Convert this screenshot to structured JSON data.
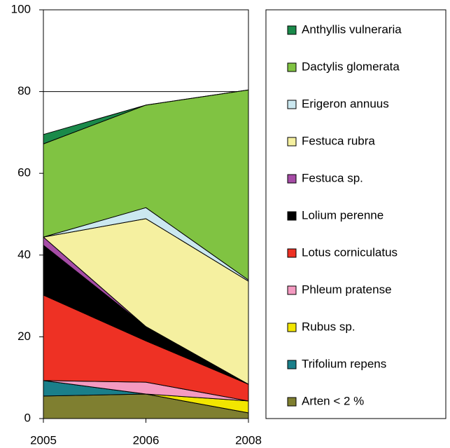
{
  "chart_data": {
    "type": "stacked_area",
    "categories": [
      "2005",
      "2006",
      "2008"
    ],
    "ylim": [
      0,
      100
    ],
    "yticks": [
      0,
      20,
      40,
      60,
      80,
      100
    ],
    "grid": true,
    "series": [
      {
        "name": "Arten < 2 %",
        "color": "#7f7f30",
        "values": [
          5.5,
          6.0,
          1.4
        ]
      },
      {
        "name": "Trifolium repens",
        "color": "#1a7f8a",
        "values": [
          3.8,
          0,
          0
        ]
      },
      {
        "name": "Rubus sp.",
        "color": "#f2e600",
        "values": [
          0,
          0,
          2.9
        ]
      },
      {
        "name": "Phleum pratense",
        "color": "#f49ac1",
        "values": [
          0,
          2.9,
          0
        ]
      },
      {
        "name": "Lotus corniculatus",
        "color": "#ee3124",
        "values": [
          20.9,
          10.1,
          4.1
        ]
      },
      {
        "name": "Lolium perenne",
        "color": "#000000",
        "values": [
          12.2,
          3.5,
          0
        ]
      },
      {
        "name": "Festuca sp.",
        "color": "#a64ca6",
        "values": [
          2.0,
          0,
          0
        ]
      },
      {
        "name": "Festuca rubra",
        "color": "#f5f0a0",
        "values": [
          0,
          26.4,
          25.2
        ]
      },
      {
        "name": "Erigeron annuus",
        "color": "#cbe8f0",
        "values": [
          0,
          2.7,
          0.3
        ]
      },
      {
        "name": "Dactylis glomerata",
        "color": "#80c342",
        "values": [
          22.8,
          25.1,
          46.5
        ]
      },
      {
        "name": "Anthyllis vulneraria",
        "color": "#1a8a4a",
        "values": [
          2.3,
          0,
          0
        ]
      }
    ]
  }
}
